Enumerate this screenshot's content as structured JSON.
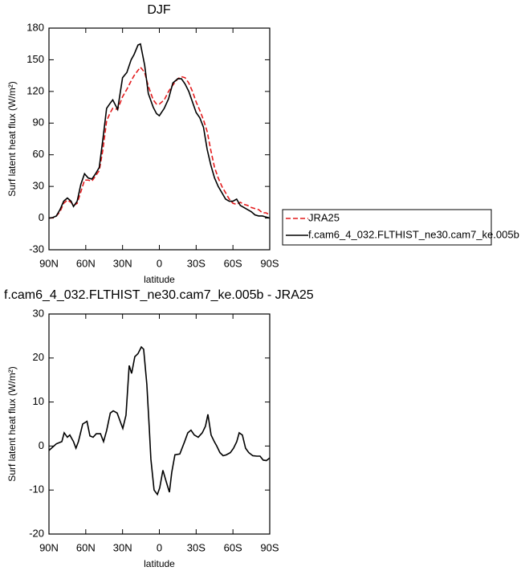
{
  "chart_data": [
    {
      "type": "line",
      "title": "DJF",
      "x_label": "latitude",
      "y_label": "Surf latent heat flux (W/m²)",
      "x": [
        90,
        87,
        84,
        81,
        78,
        75,
        72,
        70,
        67,
        64,
        61,
        58,
        55,
        52,
        49,
        46,
        43,
        40,
        38,
        34,
        30,
        26.5,
        23,
        20.6,
        17.4,
        15.4,
        12,
        9,
        5,
        2.3,
        0,
        -4,
        -7.5,
        -11,
        -15,
        -18,
        -21,
        -24,
        -27,
        -30,
        -33,
        -36,
        -39,
        -42,
        -45,
        -48,
        -51,
        -54,
        -57,
        -60,
        -63,
        -66,
        -69,
        -72,
        -75,
        -78,
        -81,
        -84,
        -87,
        -90
      ],
      "series": [
        {
          "name": "JRA25",
          "color": "#e41a1c",
          "dash": true,
          "values": [
            0,
            0.3,
            2,
            6,
            14,
            17,
            15,
            12,
            14,
            25,
            36,
            36,
            35,
            40,
            45,
            65,
            92,
            100,
            104,
            103,
            115,
            122,
            130,
            135,
            140,
            143,
            138,
            125,
            112,
            108,
            108,
            112,
            120,
            126,
            132,
            134,
            133,
            128,
            120,
            110,
            102,
            93,
            82,
            64,
            48,
            38,
            30,
            24,
            18,
            14,
            13,
            15,
            13,
            12,
            10,
            9,
            8,
            5,
            5,
            3
          ]
        },
        {
          "name": "f.cam6_4_032.FLTHIST_ne30.cam7_ke.005b",
          "color": "#000000",
          "dash": false,
          "values": [
            0,
            0.5,
            2,
            8,
            16,
            19,
            16,
            11,
            16,
            32,
            42,
            38,
            37,
            42,
            48,
            75,
            104,
            109,
            112,
            103,
            133,
            138,
            150,
            155,
            164,
            165,
            145,
            118,
            105,
            99,
            97,
            104,
            113,
            128,
            132,
            132,
            127,
            120,
            110,
            100,
            95,
            86,
            65,
            50,
            38,
            30,
            24,
            18,
            16,
            16,
            18,
            12,
            10,
            8,
            6,
            3,
            2,
            2,
            1,
            0
          ]
        }
      ],
      "xlim": [
        90,
        -90
      ],
      "xticks": [
        {
          "value": 90,
          "label": "90N"
        },
        {
          "value": 60,
          "label": "60N"
        },
        {
          "value": 30,
          "label": "30N"
        },
        0,
        {
          "value": -30,
          "label": "30S"
        },
        {
          "value": -60,
          "label": "60S"
        },
        {
          "value": -90,
          "label": "90S"
        }
      ],
      "ylim": [
        -30,
        180
      ],
      "yticks": [
        -30,
        0,
        30,
        60,
        90,
        120,
        150,
        180
      ],
      "legend": "right"
    },
    {
      "type": "line",
      "title": "f.cam6_4_032.FLTHIST_ne30.cam7_ke.005b - JRA25",
      "x_label": "latitude",
      "y_label": "Surf latent heat flux (W/m²)",
      "x": [
        90,
        84,
        79.5,
        77.6,
        75,
        73,
        70,
        68,
        66,
        62.5,
        59,
        56.6,
        54,
        51.4,
        48,
        45.5,
        43,
        40,
        37.6,
        34.4,
        31.8,
        29.8,
        27.2,
        24.6,
        22.6,
        20,
        17.4,
        14.7,
        12.8,
        10.2,
        8.2,
        6.9,
        4.3,
        1.6,
        -0.3,
        -2.9,
        -5.5,
        -8.2,
        -10.1,
        -12.7,
        -16.7,
        -20.6,
        -23.2,
        -25.8,
        -28.5,
        -31.7,
        -35,
        -37.6,
        -39.6,
        -42.2,
        -44.8,
        -46.8,
        -49.4,
        -52,
        -54.6,
        -57.9,
        -60.5,
        -63.1,
        -65.1,
        -67.7,
        -70.3,
        -72.9,
        -76.2,
        -79.5,
        -82.1,
        -84.7,
        -87.3,
        -90
      ],
      "series": [
        {
          "color": "#000000",
          "dash": false,
          "values": [
            -1,
            0.5,
            1,
            3,
            2,
            2.5,
            1,
            -0.5,
            1,
            5,
            5.6,
            2.3,
            2,
            2.8,
            2.8,
            1,
            3.5,
            7.5,
            8,
            7.5,
            5.5,
            4,
            7,
            18.3,
            16.5,
            20.3,
            21,
            22.5,
            22,
            14,
            4,
            -3,
            -10,
            -11,
            -9.5,
            -5.5,
            -8,
            -10.5,
            -6,
            -2,
            -1.8,
            1,
            3,
            3.6,
            2.5,
            2,
            3,
            4.5,
            7.2,
            2.5,
            1,
            0,
            -1.5,
            -2.2,
            -2,
            -1.5,
            -0.5,
            1,
            3,
            2.5,
            -0.5,
            -1.5,
            -2.2,
            -2.3,
            -2.3,
            -3.2,
            -3.3,
            -2.7
          ]
        }
      ],
      "xlim": [
        90,
        -90
      ],
      "xticks": [
        {
          "value": 90,
          "label": "90N"
        },
        {
          "value": 60,
          "label": "60N"
        },
        {
          "value": 30,
          "label": "30N"
        },
        0,
        {
          "value": -30,
          "label": "30S"
        },
        {
          "value": -60,
          "label": "60S"
        },
        {
          "value": -90,
          "label": "90S"
        }
      ],
      "ylim": [
        -20,
        30
      ],
      "yticks": [
        -20,
        -10,
        0,
        10,
        20,
        30
      ]
    }
  ]
}
